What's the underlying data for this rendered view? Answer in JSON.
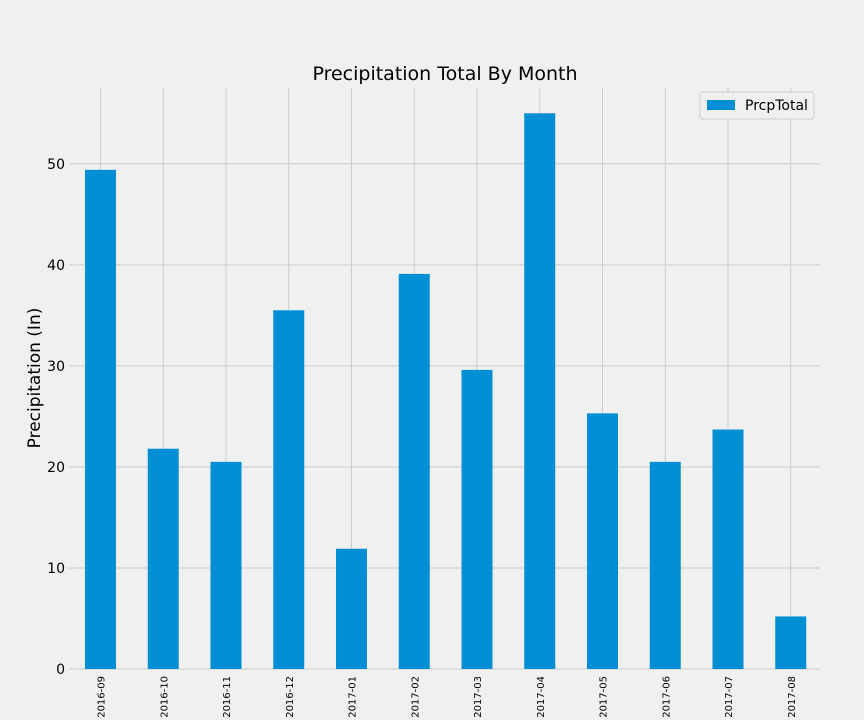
{
  "chart_data": {
    "type": "bar",
    "title": "Precipitation Total By Month",
    "ylabel": "Precipitation (In)",
    "xlabel": "",
    "categories": [
      "2016-09",
      "2016-10",
      "2016-11",
      "2016-12",
      "2017-01",
      "2017-02",
      "2017-03",
      "2017-04",
      "2017-05",
      "2017-06",
      "2017-07",
      "2017-08"
    ],
    "series": [
      {
        "name": "PrcpTotal",
        "values": [
          49.4,
          21.8,
          20.5,
          35.5,
          11.9,
          39.1,
          29.6,
          55.0,
          25.3,
          20.5,
          23.7,
          5.2
        ],
        "color": "#008fd5"
      }
    ],
    "yticks": [
      "0",
      "10",
      "20",
      "30",
      "40",
      "50"
    ],
    "ylim": [
      0,
      57.5
    ],
    "grid": true,
    "legend_position": "top-right"
  },
  "colors": {
    "background": "#f0f0f0",
    "grid": "#cbcbcb",
    "bar": "#008fd5"
  }
}
